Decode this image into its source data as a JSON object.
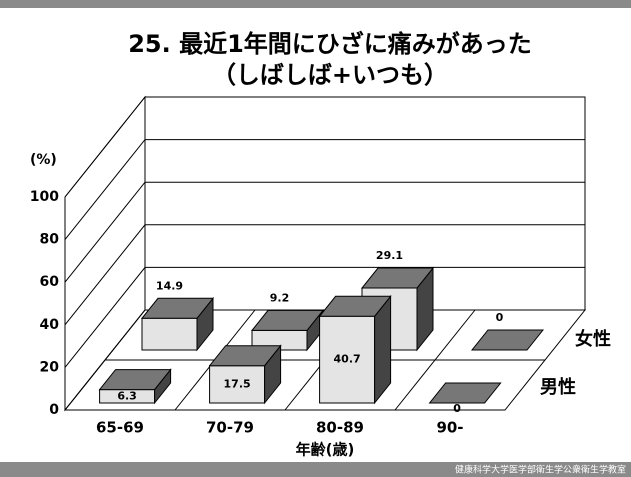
{
  "chart_data": {
    "type": "bar3d",
    "title": "25.  最近1年間にひざに痛みがあった",
    "subtitle": "（しばしば+いつも）",
    "y_label": "(%)",
    "x_label": "年齢(歳)",
    "footer": "健康科学大学医学部衛生学公衆衛生学教室",
    "categories": [
      "65-69",
      "70-79",
      "80-89",
      "90-"
    ],
    "series": [
      {
        "name": "男性",
        "color": "#e4e4e4",
        "values": [
          6.3,
          17.5,
          40.7,
          0
        ]
      },
      {
        "name": "女性",
        "color": "#e4e4e4",
        "values": [
          14.9,
          9.2,
          29.1,
          0
        ]
      }
    ],
    "ylim": [
      0,
      100
    ],
    "yticks": [
      0,
      20,
      40,
      60,
      80,
      100
    ],
    "grid": true
  }
}
